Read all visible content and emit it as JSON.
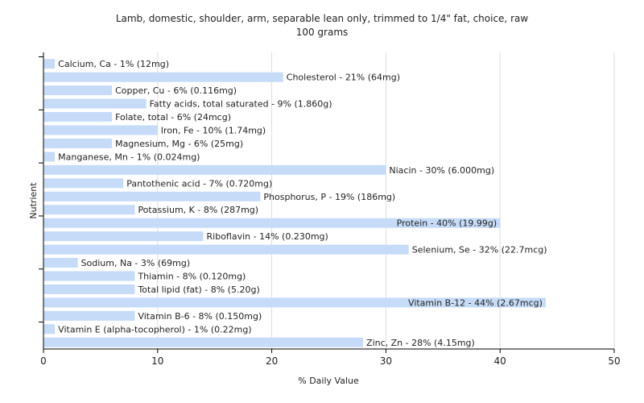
{
  "chart_data": {
    "type": "bar",
    "orientation": "horizontal",
    "title": "Lamb, domestic, shoulder, arm, separable lean only, trimmed to 1/4\" fat, choice, raw",
    "subtitle": "100 grams",
    "xlabel": "% Daily Value",
    "ylabel": "Nutrient",
    "xlim": [
      0,
      50
    ],
    "xticks": [
      0,
      10,
      20,
      30,
      40,
      50
    ],
    "grid": true,
    "colors": {
      "bar": "#c6dbf7",
      "grid": "#dddddd",
      "axis": "#000000",
      "plot_bg": "#ffffff"
    },
    "categories": [
      "Calcium, Ca",
      "Cholesterol",
      "Copper, Cu",
      "Fatty acids, total saturated",
      "Folate, total",
      "Iron, Fe",
      "Magnesium, Mg",
      "Manganese, Mn",
      "Niacin",
      "Pantothenic acid",
      "Phosphorus, P",
      "Potassium, K",
      "Protein",
      "Riboflavin",
      "Selenium, Se",
      "Sodium, Na",
      "Thiamin",
      "Total lipid (fat)",
      "Vitamin B-12",
      "Vitamin B-6",
      "Vitamin E (alpha-tocopherol)",
      "Zinc, Zn"
    ],
    "values": [
      1,
      21,
      6,
      9,
      6,
      10,
      6,
      1,
      30,
      7,
      19,
      8,
      40,
      14,
      32,
      3,
      8,
      8,
      44,
      8,
      1,
      28
    ],
    "labels": [
      "Calcium, Ca - 1% (12mg)",
      "Cholesterol - 21% (64mg)",
      "Copper, Cu - 6% (0.116mg)",
      "Fatty acids, total saturated - 9% (1.860g)",
      "Folate, total - 6% (24mcg)",
      "Iron, Fe - 10% (1.74mg)",
      "Magnesium, Mg - 6% (25mg)",
      "Manganese, Mn - 1% (0.024mg)",
      "Niacin - 30% (6.000mg)",
      "Pantothenic acid - 7% (0.720mg)",
      "Phosphorus, P - 19% (186mg)",
      "Potassium, K - 8% (287mg)",
      "Protein - 40% (19.99g)",
      "Riboflavin - 14% (0.230mg)",
      "Selenium, Se - 32% (22.7mcg)",
      "Sodium, Na - 3% (69mg)",
      "Thiamin - 8% (0.120mg)",
      "Total lipid (fat) - 8% (5.20g)",
      "Vitamin B-12 - 44% (2.67mcg)",
      "Vitamin B-6 - 8% (0.150mg)",
      "Vitamin E (alpha-tocopherol) - 1% (0.22mg)",
      "Zinc, Zn - 28% (4.15mg)"
    ]
  }
}
